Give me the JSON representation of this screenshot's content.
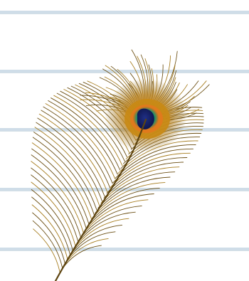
{
  "image": {
    "subject": "peacock-feather",
    "background": "lined-paper"
  },
  "colors": {
    "paper": "#ffffff",
    "paper_line": "#cfdde8",
    "paper_line_dark": "#b8c9d6",
    "barb_dark": "#6b4e12",
    "barb_gold": "#a67c1e",
    "rachis": "#5d4410",
    "eye_outer": "#c8860a",
    "eye_ring_orange": "#d9731c",
    "eye_green": "#1aa37a",
    "eye_center": "#16205a"
  }
}
